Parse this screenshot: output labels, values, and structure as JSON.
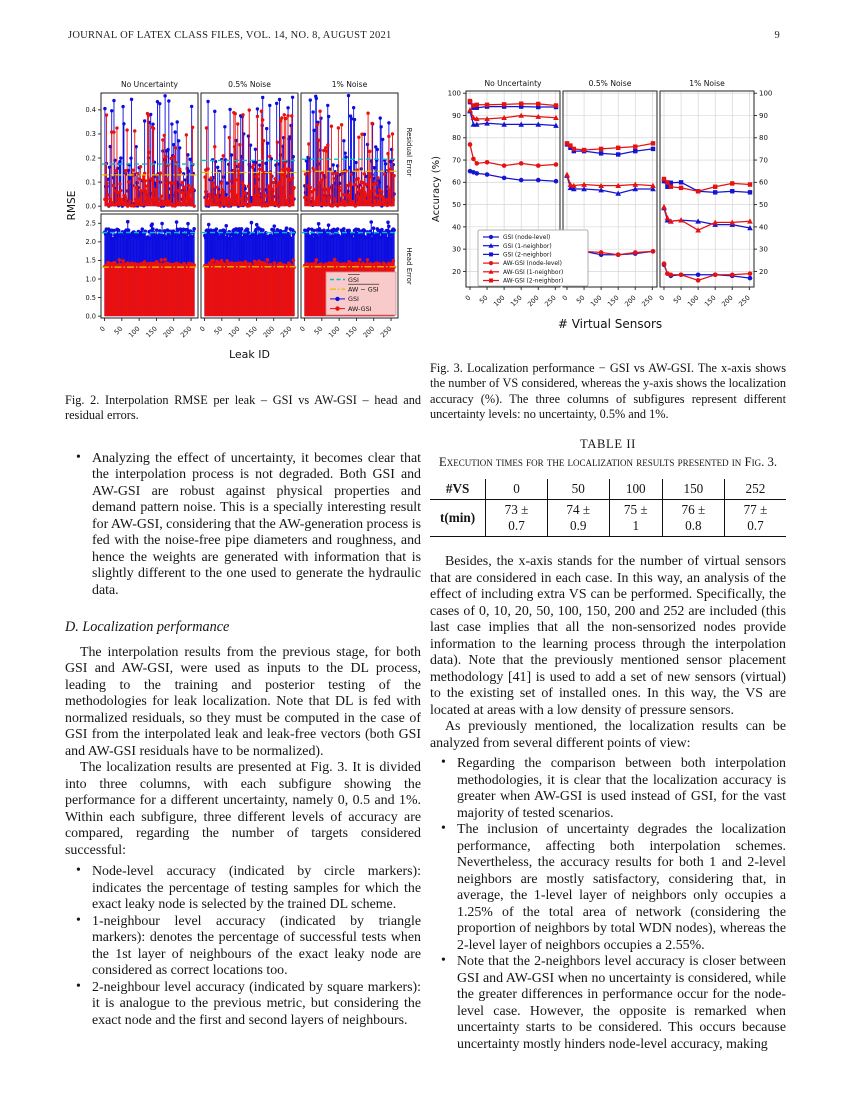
{
  "header": {
    "journal": "JOURNAL OF LATEX CLASS FILES, VOL. 14, NO. 8, AUGUST 2021",
    "page": "9"
  },
  "fig2": {
    "caption": "Fig. 2.  Interpolation RMSE per leak – GSI vs AW-GSI – head and residual errors."
  },
  "fig3": {
    "caption": "Fig. 3.  Localization performance − GSI vs AW-GSI. The x-axis shows the number of VS considered, whereas the y-axis shows the localization accuracy (%). The three columns of subfigures represent different uncertainty levels: no uncertainty, 0.5% and 1%."
  },
  "table2": {
    "label": "TABLE II",
    "caption": "Execution times for the localization results presented in Fig. 3.",
    "header": [
      "#VS",
      "0",
      "50",
      "100",
      "150",
      "252"
    ],
    "row": [
      "t(min)",
      "73 ± 0.7",
      "74 ± 0.9",
      "75 ± 1",
      "76 ± 0.8",
      "77 ± 0.7"
    ]
  },
  "left": {
    "bullet_top": "Analyzing the effect of uncertainty, it becomes clear that the interpolation process is not degraded. Both GSI and AW-GSI are robust against physical properties and demand pattern noise. This is a specially interesting result for AW-GSI, considering that the AW-generation process is fed with the noise-free pipe diameters and roughness, and hence the weights are generated with information that is slightly different to the one used to generate the hydraulic data.",
    "section_heading": "D. Localization performance",
    "para1": "The interpolation results from the previous stage, for both GSI and AW-GSI, were used as inputs to the DL process, leading to the training and posterior testing of the methodologies for leak localization. Note that DL is fed with normalized residuals, so they must be computed in the case of GSI from the interpolated leak and leak-free vectors (both GSI and AW-GSI residuals have to be normalized).",
    "para2": "The localization results are presented at Fig. 3. It is divided into three columns, with each subfigure showing the performance for a different uncertainty, namely 0, 0.5 and 1%. Within each subfigure, three different levels of accuracy are compared, regarding the number of targets considered successful:",
    "bullets": [
      "Node-level accuracy (indicated by circle markers): indicates the percentage of testing samples for which the exact leaky node is selected by the trained DL scheme.",
      "1-neighbour level accuracy (indicated by triangle markers): denotes the percentage of successful tests when the 1st layer of neighbours of the exact leaky node are considered as correct locations too.",
      "2-neighbour level accuracy (indicated by square markers): it is analogue to the previous metric, but considering the exact node and the first and second layers of neighbours."
    ]
  },
  "right": {
    "para1": "Besides, the x-axis stands for the number of virtual sensors that are considered in each case. In this way, an analysis of the effect of including extra VS can be performed. Specifically, the cases of 0, 10, 20, 50, 100, 150, 200 and 252 are included (this last case implies that all the non-sensorized nodes provide information to the learning process through the interpolation data). Note that the previously mentioned sensor placement methodology [41] is used to add a set of new sensors (virtual) to the existing set of installed ones. In this way, the VS are located at areas with a low density of pressure sensors.",
    "para2": "As previously mentioned, the localization results can be analyzed from several different points of view:",
    "bullets": [
      "Regarding the comparison between both interpolation methodologies, it is clear that the localization accuracy is greater when AW-GSI is used instead of GSI, for the vast majority of tested scenarios.",
      "The inclusion of uncertainty degrades the localization performance, affecting both interpolation schemes. Nevertheless, the accuracy results for both 1 and 2-level neighbors are mostly satisfactory, considering that, in average, the 1-level layer of neighbors only occupies a 1.25% of the total area of network (considering the proportion of neighbors by total WDN nodes), whereas the 2-level layer of neighbors occupies a 2.55%.",
      "Note that the 2-neighbors level accuracy is closer between GSI and AW-GSI when no uncertainty is considered, while the greater differences in performance occur for the node-level case. However, the opposite is remarked when uncertainty starts to be considered. This occurs because uncertainty mostly hinders node-level accuracy, making"
    ]
  },
  "chart_data": [
    {
      "type": "scatter",
      "figure": "Fig. 2",
      "col_titles": [
        "No Uncertainty",
        "0.5% Noise",
        "1% Noise"
      ],
      "row_labels": [
        "Residual Error",
        "Head Error"
      ],
      "xlabel": "Leak ID",
      "ylabel": "RMSE",
      "xticks": [
        0,
        50,
        100,
        150,
        200,
        250
      ],
      "x_max": 260,
      "residual": {
        "yticks": [
          "0.0",
          "0.1",
          "0.2",
          "0.3",
          "0.4"
        ],
        "ylim": [
          -0.02,
          0.47
        ],
        "gsi_mean_line": [
          0.175,
          0.19,
          0.195
        ],
        "awgsi_mean_line": [
          0.13,
          0.14,
          0.145
        ],
        "gsi_spike_max": 0.46,
        "awgsi_spike_max": 0.4
      },
      "head": {
        "yticks": [
          "0.0",
          "0.5",
          "1.0",
          "1.5",
          "2.0",
          "2.5"
        ],
        "ylim": [
          -0.05,
          2.75
        ],
        "gsi_mean_line": [
          2.25,
          2.25,
          2.25
        ],
        "awgsi_mean_line": [
          1.32,
          1.33,
          1.33
        ],
        "gsi_band": [
          2.08,
          2.6
        ],
        "awgsi_band": [
          1.3,
          1.52
        ]
      },
      "legend": [
        {
          "label": "GSI",
          "overline": true,
          "style": "dashed",
          "color": "#00bfc8"
        },
        {
          "label": "AW − GSI",
          "overline": true,
          "style": "dashdot",
          "color": "#e3c00a"
        },
        {
          "label": "GSI",
          "overline": false,
          "style": "marker",
          "color": "#0d0de0"
        },
        {
          "label": "AW-GSI",
          "overline": false,
          "style": "marker",
          "color": "#ea1010"
        }
      ],
      "colors": {
        "gsi": "#0d0de0",
        "awgsi": "#ea1010",
        "gsi_mean": "#00bfc8",
        "awgsi_mean": "#e3c00a"
      }
    },
    {
      "type": "line",
      "figure": "Fig. 3",
      "col_titles": [
        "No Uncertainty",
        "0.5% Noise",
        "1% Noise"
      ],
      "xlabel": "# Virtual Sensors",
      "ylabel": "Accuracy (%)",
      "x": [
        0,
        10,
        20,
        50,
        100,
        150,
        200,
        252
      ],
      "xticks": [
        0,
        50,
        100,
        150,
        200,
        250
      ],
      "yticks": [
        20,
        30,
        40,
        50,
        60,
        70,
        80,
        90,
        100
      ],
      "ylim": [
        13,
        101
      ],
      "grid": true,
      "legend_position": "lower-left of first panel",
      "series": [
        {
          "name": "GSI (node-level)",
          "color": "#1414d2",
          "marker": "circle",
          "values": [
            [
              65,
              64.5,
              64,
              63.5,
              62,
              61,
              61,
              60.5
            ],
            [
              35,
              32,
              29,
              29,
              27.5,
              27.5,
              28,
              29
            ],
            [
              23,
              19,
              18,
              18.5,
              18.5,
              18.5,
              18,
              17
            ]
          ]
        },
        {
          "name": "GSI (1-neighbor)",
          "color": "#1414d2",
          "marker": "triangle",
          "values": [
            [
              92,
              86,
              86,
              86.5,
              86,
              86,
              86,
              85.5
            ],
            [
              63,
              57.5,
              57,
              57,
              56.5,
              55,
              57,
              57
            ],
            [
              48.5,
              43,
              42.5,
              43,
              42.5,
              41,
              41,
              39.5
            ]
          ]
        },
        {
          "name": "GSI (2-neighbor)",
          "color": "#1414d2",
          "marker": "square",
          "values": [
            [
              96,
              93.5,
              93.5,
              94,
              94,
              94,
              93.8,
              93.8
            ],
            [
              77,
              75.5,
              74,
              74,
              73,
              72.5,
              74,
              75
            ],
            [
              60.5,
              58,
              59.8,
              60,
              56,
              55.5,
              56,
              55.5
            ]
          ]
        },
        {
          "name": "AW-GSI (node-level)",
          "color": "#e51212",
          "marker": "circle",
          "values": [
            [
              77,
              70.5,
              68.5,
              69,
              67.5,
              68.5,
              67.5,
              68
            ],
            [
              35,
              32,
              29.5,
              29,
              28.5,
              27.5,
              28.5,
              29
            ],
            [
              23.5,
              19,
              18.5,
              18.5,
              16,
              18.5,
              18.5,
              19
            ]
          ]
        },
        {
          "name": "AW-GSI (1-neighbor)",
          "color": "#e51212",
          "marker": "triangle",
          "values": [
            [
              92.5,
              89,
              88.5,
              88.5,
              89,
              90,
              89.5,
              89
            ],
            [
              63.5,
              59,
              58.5,
              59,
              58.5,
              58.5,
              59,
              58.5
            ],
            [
              49,
              44,
              42.5,
              43,
              38.5,
              42,
              42,
              42.5
            ]
          ]
        },
        {
          "name": "AW-GSI (2-neighbor)",
          "color": "#e51212",
          "marker": "square",
          "values": [
            [
              96.5,
              94.5,
              94.8,
              94.8,
              95,
              95.3,
              95.2,
              94.5
            ],
            [
              77.5,
              76.5,
              75,
              74.5,
              75,
              75.5,
              76,
              77.5
            ],
            [
              61.5,
              60,
              58,
              57.5,
              56,
              58,
              59.5,
              59
            ]
          ]
        }
      ]
    }
  ]
}
